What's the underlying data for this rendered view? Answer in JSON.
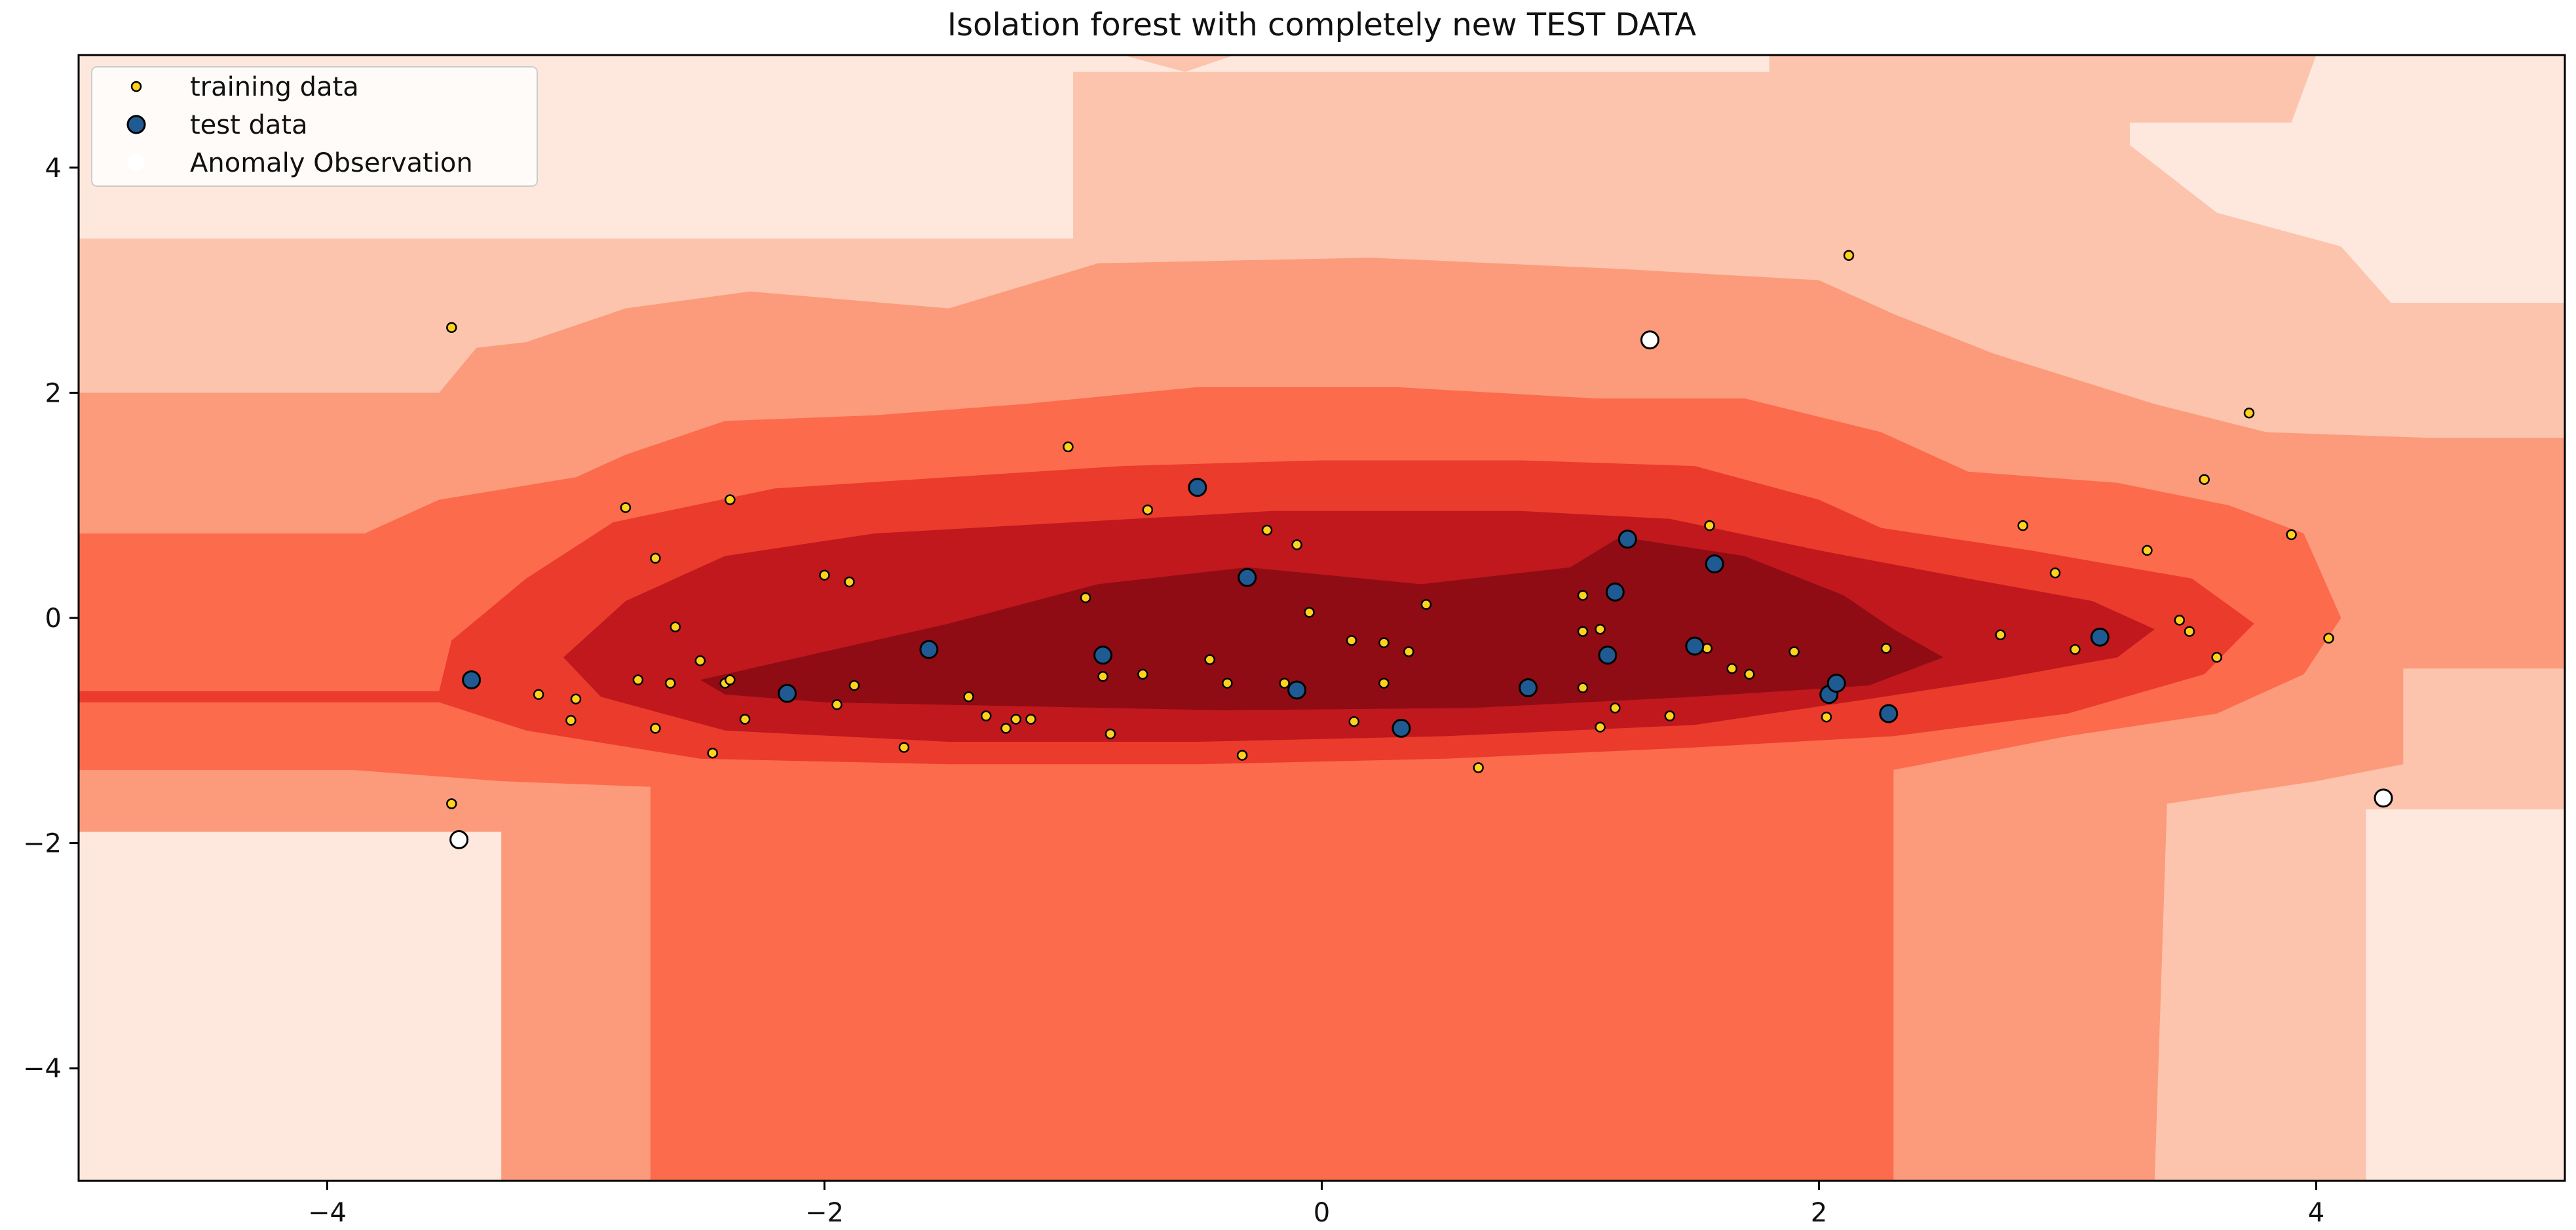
{
  "chart_data": {
    "type": "scatter",
    "title": "Isolation forest with completely new TEST DATA",
    "xlabel": "",
    "ylabel": "",
    "xlim": [
      -5,
      5
    ],
    "ylim": [
      -5,
      5
    ],
    "xticks": [
      -4,
      -2,
      0,
      2,
      4
    ],
    "yticks": [
      -4,
      -2,
      0,
      2,
      4
    ],
    "grid": false,
    "legend_position": "top-left",
    "background": "anomaly-score contour (Reds colormap, darker = more normal)",
    "colors": {
      "contour_levels": [
        "#fee8dd",
        "#fcc4ad",
        "#fc9b7b",
        "#fc6b4b",
        "#ea3b2c",
        "#c0181d",
        "#8f0c14"
      ],
      "training_face": "#ffd21e",
      "test_face": "#1f5a92",
      "anomaly_face": "#ffffff",
      "edge": "#000000"
    },
    "series": [
      {
        "name": "training data",
        "points": [
          [
            -3.5,
            2.58
          ],
          [
            -3.5,
            -1.65
          ],
          [
            -3.15,
            -0.68
          ],
          [
            -3.0,
            -0.72
          ],
          [
            -3.02,
            -0.91
          ],
          [
            -2.8,
            0.98
          ],
          [
            -2.75,
            -0.55
          ],
          [
            -2.68,
            0.53
          ],
          [
            -2.68,
            -0.98
          ],
          [
            -2.62,
            -0.58
          ],
          [
            -2.6,
            -0.08
          ],
          [
            -2.5,
            -0.38
          ],
          [
            -2.45,
            -1.2
          ],
          [
            -2.4,
            -0.58
          ],
          [
            -2.38,
            -0.55
          ],
          [
            -2.38,
            1.05
          ],
          [
            -2.32,
            -0.9
          ],
          [
            -2.0,
            0.38
          ],
          [
            -1.95,
            -0.77
          ],
          [
            -1.9,
            0.32
          ],
          [
            -1.88,
            -0.6
          ],
          [
            -1.68,
            -1.15
          ],
          [
            -1.42,
            -0.7
          ],
          [
            -1.35,
            -0.87
          ],
          [
            -1.27,
            -0.98
          ],
          [
            -1.23,
            -0.9
          ],
          [
            -1.17,
            -0.9
          ],
          [
            -1.02,
            1.52
          ],
          [
            -0.95,
            0.18
          ],
          [
            -0.88,
            -0.52
          ],
          [
            -0.85,
            -1.03
          ],
          [
            -0.72,
            -0.5
          ],
          [
            -0.7,
            0.96
          ],
          [
            -0.45,
            -0.37
          ],
          [
            -0.38,
            -0.58
          ],
          [
            -0.32,
            -1.22
          ],
          [
            -0.22,
            0.78
          ],
          [
            -0.15,
            -0.58
          ],
          [
            -0.1,
            0.65
          ],
          [
            -0.05,
            0.05
          ],
          [
            0.12,
            -0.2
          ],
          [
            0.13,
            -0.92
          ],
          [
            0.25,
            -0.22
          ],
          [
            0.25,
            -0.58
          ],
          [
            0.35,
            -0.3
          ],
          [
            0.42,
            0.12
          ],
          [
            0.63,
            -1.33
          ],
          [
            1.05,
            -0.12
          ],
          [
            1.05,
            0.2
          ],
          [
            1.05,
            -0.62
          ],
          [
            1.12,
            -0.1
          ],
          [
            1.12,
            -0.97
          ],
          [
            1.18,
            -0.8
          ],
          [
            1.4,
            -0.87
          ],
          [
            1.55,
            -0.27
          ],
          [
            1.56,
            0.82
          ],
          [
            1.65,
            -0.45
          ],
          [
            1.72,
            -0.5
          ],
          [
            1.9,
            -0.3
          ],
          [
            2.03,
            -0.88
          ],
          [
            2.12,
            3.22
          ],
          [
            2.27,
            -0.27
          ],
          [
            2.73,
            -0.15
          ],
          [
            2.82,
            0.82
          ],
          [
            2.95,
            0.4
          ],
          [
            3.03,
            -0.28
          ],
          [
            3.32,
            0.6
          ],
          [
            3.45,
            -0.02
          ],
          [
            3.49,
            -0.12
          ],
          [
            3.55,
            1.23
          ],
          [
            3.6,
            -0.35
          ],
          [
            3.73,
            1.82
          ],
          [
            3.9,
            0.74
          ],
          [
            4.05,
            -0.18
          ]
        ]
      },
      {
        "name": "test data",
        "points": [
          [
            -3.42,
            -0.55
          ],
          [
            -2.15,
            -0.67
          ],
          [
            -1.58,
            -0.28
          ],
          [
            -0.88,
            -0.33
          ],
          [
            -0.5,
            1.16
          ],
          [
            -0.3,
            0.36
          ],
          [
            -0.1,
            -0.64
          ],
          [
            0.32,
            -0.98
          ],
          [
            0.83,
            -0.62
          ],
          [
            1.15,
            -0.33
          ],
          [
            1.18,
            0.23
          ],
          [
            1.23,
            0.7
          ],
          [
            1.5,
            -0.25
          ],
          [
            1.58,
            0.48
          ],
          [
            2.04,
            -0.68
          ],
          [
            2.07,
            -0.58
          ],
          [
            2.28,
            -0.85
          ],
          [
            3.13,
            -0.17
          ]
        ]
      },
      {
        "name": "Anomaly Observation",
        "points": [
          [
            -3.47,
            -1.97
          ],
          [
            1.32,
            2.47
          ],
          [
            4.27,
            -1.6
          ]
        ]
      }
    ]
  }
}
